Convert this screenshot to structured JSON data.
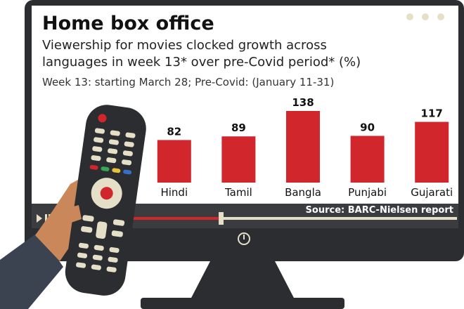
{
  "chart_data": {
    "type": "bar",
    "title": "Home box office",
    "subtitle": [
      "Viewership for movies clocked growth across",
      "languages in week 13* over pre-Covid period* (%)"
    ],
    "note": "Week 13: starting March 28; Pre-Covid: (January 11-31)",
    "categories": [
      "Hindi",
      "Tamil",
      "Bangla",
      "Punjabi",
      "Gujarati"
    ],
    "values": [
      82,
      89,
      138,
      90,
      117
    ],
    "color": "#d0262c",
    "source": "Source: BARC-Nielsen report"
  }
}
